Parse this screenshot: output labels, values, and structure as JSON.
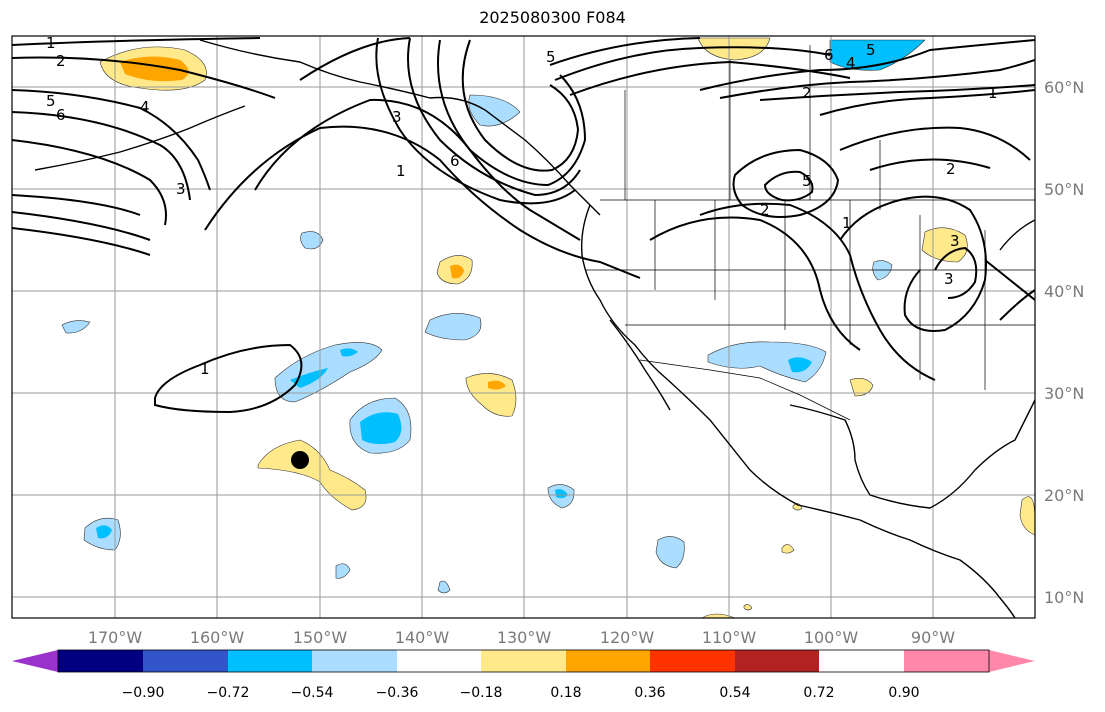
{
  "title": "2025080300 F084",
  "map": {
    "lon_ticks": [
      "170°W",
      "160°W",
      "150°W",
      "140°W",
      "130°W",
      "120°W",
      "110°W",
      "100°W",
      "90°W"
    ],
    "lat_ticks": [
      "60°N",
      "50°N",
      "40°N",
      "30°N",
      "20°N",
      "10°N"
    ],
    "contour_labels": [
      "1",
      "2",
      "5",
      "4",
      "6",
      "3",
      "1",
      "3",
      "6",
      "5",
      "6",
      "4",
      "5",
      "2",
      "1",
      "2",
      "5",
      "2",
      "1",
      "3",
      "1",
      "3"
    ]
  },
  "colorbar": {
    "colors": [
      "#9933cc",
      "#000080",
      "#3355cc",
      "#00bfff",
      "#aaddff",
      "#ffffff",
      "#ffe98a",
      "#ffa500",
      "#ff3300",
      "#b22222",
      "#ff88aa"
    ],
    "labels": [
      "−0.90",
      "−0.72",
      "−0.54",
      "−0.36",
      "−0.18",
      "0.18",
      "0.36",
      "0.54",
      "0.72",
      "0.90"
    ]
  },
  "colors": {
    "contour": "#000000",
    "grid": "#9a9a9a",
    "coast": "#000000",
    "marker": "#000000"
  }
}
